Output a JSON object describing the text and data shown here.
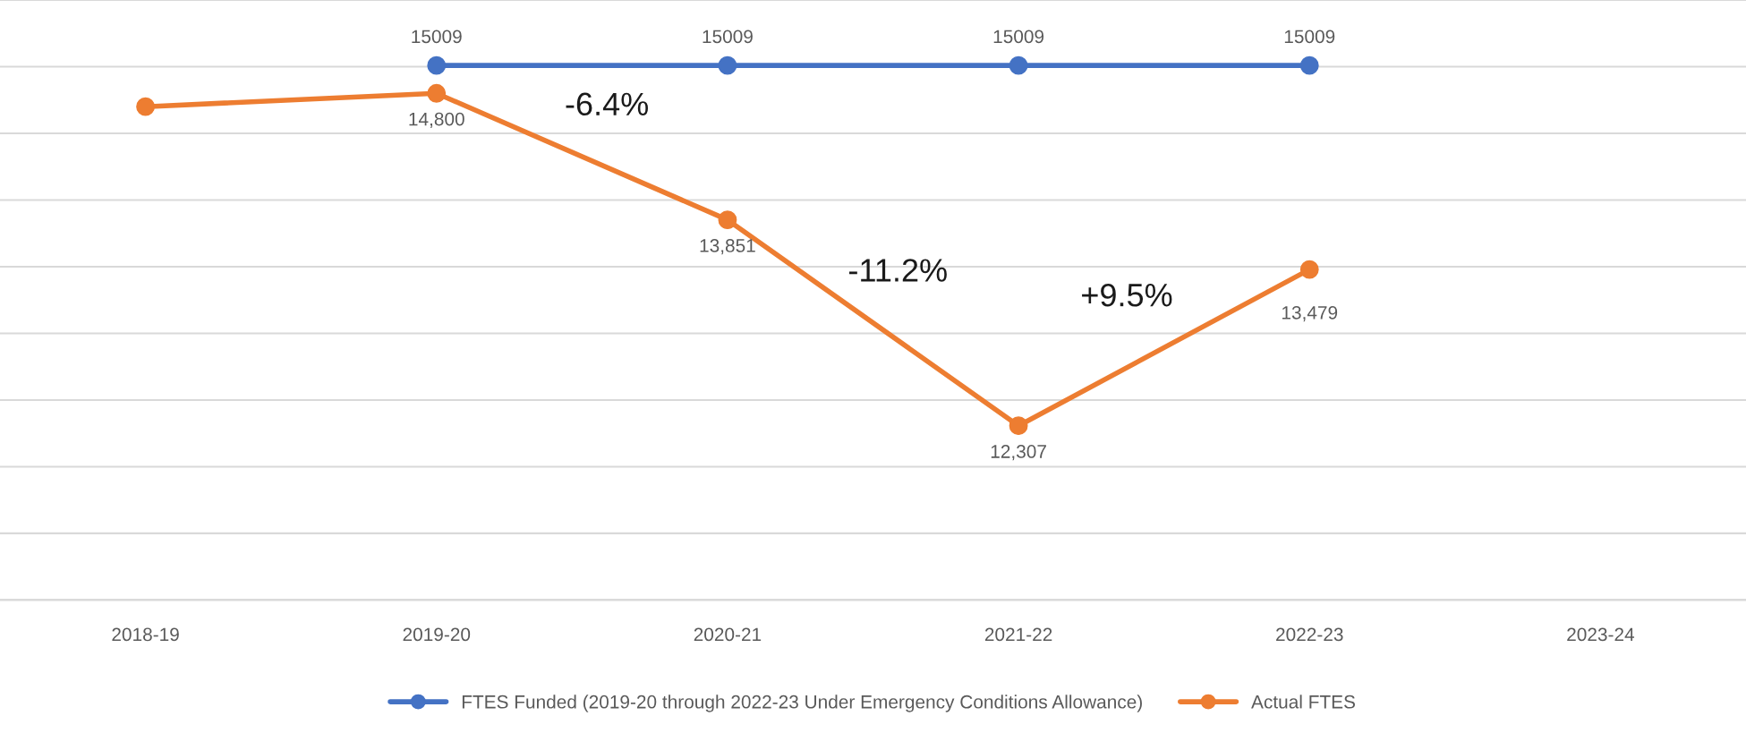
{
  "chart_data": {
    "type": "line",
    "categories": [
      "2018-19",
      "2019-20",
      "2020-21",
      "2021-22",
      "2022-23",
      "2023-24"
    ],
    "series": [
      {
        "name": "FTES Funded (2019-20 through 2022-23 Under Emergency Conditions Allowance)",
        "color": "#4472c4",
        "values": [
          null,
          15009,
          15009,
          15009,
          15009,
          null
        ],
        "value_labels": [
          null,
          "15009",
          "15009",
          "15009",
          "15009",
          null
        ]
      },
      {
        "name": "Actual FTES",
        "color": "#ed7d31",
        "values": [
          14700,
          14800,
          13851,
          12307,
          13479,
          null
        ],
        "value_labels": [
          null,
          "14,800",
          "13,851",
          "12,307",
          "13,479",
          null
        ]
      }
    ],
    "ylim": [
      11000,
      15500
    ],
    "yticks": [
      {
        "value": 11000,
        "label": null
      },
      {
        "value": 11500,
        "label": null
      },
      {
        "value": 12000,
        "label": null
      },
      {
        "value": 12500,
        "label": null
      },
      {
        "value": 13000,
        "label": null
      },
      {
        "value": 13500,
        "label": null
      },
      {
        "value": 14000,
        "label": null
      },
      {
        "value": 14500,
        "label": null
      },
      {
        "value": 15000,
        "label": null
      },
      {
        "value": 15500,
        "label": null
      }
    ],
    "tick_labels": "x",
    "grid": "y",
    "legend": "bottom",
    "marker": "circle",
    "line_style": "solid",
    "annotations": [
      "-6.4%",
      "-11.2%",
      "+9.5%"
    ]
  }
}
